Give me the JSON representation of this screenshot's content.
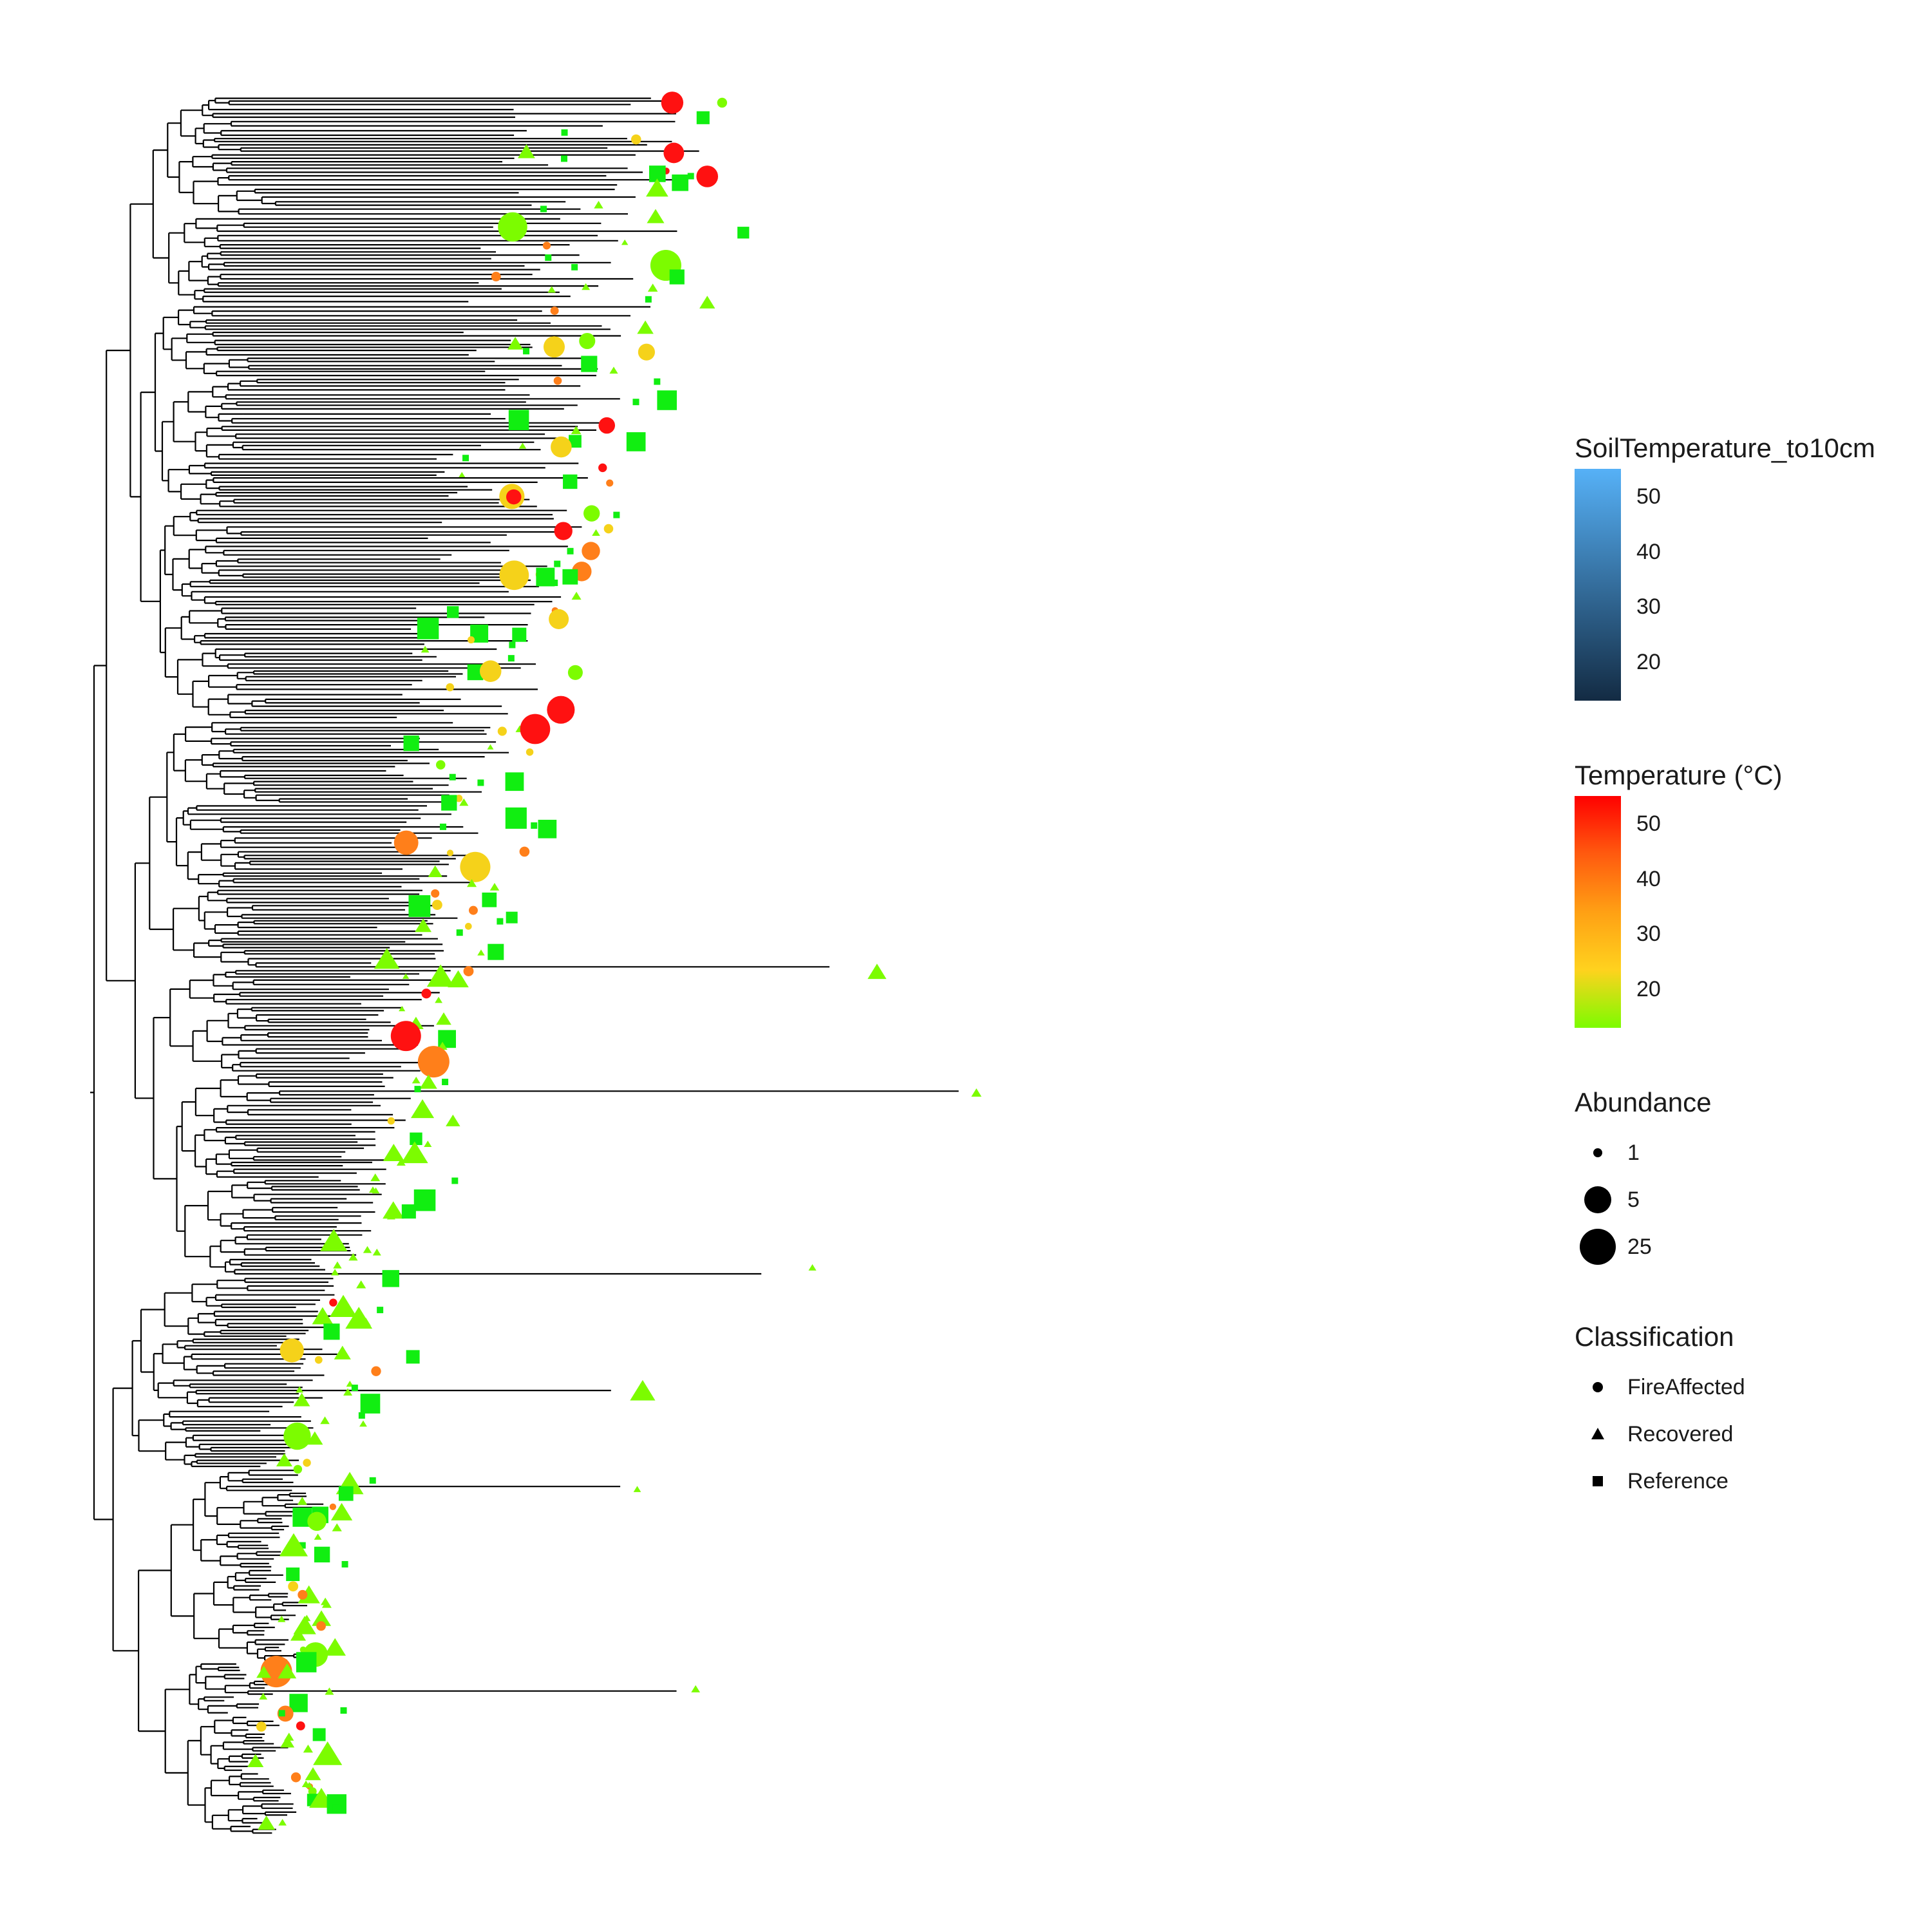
{
  "legend_soil": {
    "title": "SoilTemperature_to10cm",
    "ticks": [
      "50",
      "40",
      "30",
      "20"
    ],
    "tick_values": [
      50,
      40,
      30,
      20
    ],
    "range": [
      13,
      55
    ],
    "gradient_top": "#56B1F7",
    "gradient_bottom": "#132B43"
  },
  "legend_temp": {
    "title": "Temperature (°C)",
    "ticks": [
      "50",
      "40",
      "30",
      "20"
    ],
    "tick_values": [
      50,
      40,
      30,
      20
    ],
    "range": [
      13,
      55
    ],
    "gradient_stops": [
      "#FF0000",
      "#FF5A0F",
      "#FFA014",
      "#FFD21E",
      "#7CFC00"
    ]
  },
  "legend_abundance": {
    "title": "Abundance",
    "items": [
      {
        "label": "1",
        "value": 1
      },
      {
        "label": "5",
        "value": 5
      },
      {
        "label": "25",
        "value": 25
      }
    ]
  },
  "legend_class": {
    "title": "Classification",
    "items": [
      {
        "label": "FireAffected",
        "shape": "circle"
      },
      {
        "label": "Recovered",
        "shape": "triangle"
      },
      {
        "label": "Reference",
        "shape": "square"
      }
    ]
  },
  "colors": {
    "branch": "#000000",
    "reference": "#11EE11",
    "recovered": "#7CFC00",
    "yellow": "#F5D21A",
    "orange": "#FF7F1A",
    "red": "#FF1111"
  }
}
